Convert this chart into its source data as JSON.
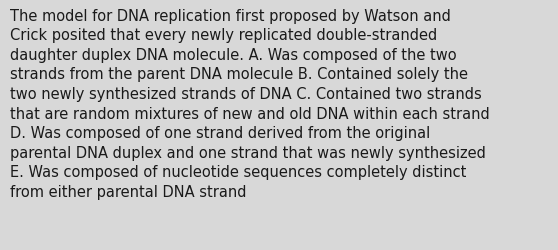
{
  "lines": [
    "The model for DNA replication first proposed by Watson and",
    "Crick posited that every newly replicated double-stranded",
    "daughter duplex DNA molecule. A. Was composed of the two",
    "strands from the parent DNA molecule B. Contained solely the",
    "two newly synthesized strands of DNA C. Contained two strands",
    "that are random mixtures of new and old DNA within each strand",
    "D. Was composed of one strand derived from the original",
    "parental DNA duplex and one strand that was newly synthesized",
    "E. Was composed of nucleotide sequences completely distinct",
    "from either parental DNA strand"
  ],
  "bg_color": "#d8d8d8",
  "text_color": "#1a1a1a",
  "font_size": 10.5,
  "fig_width": 5.58,
  "fig_height": 2.51,
  "dpi": 100
}
